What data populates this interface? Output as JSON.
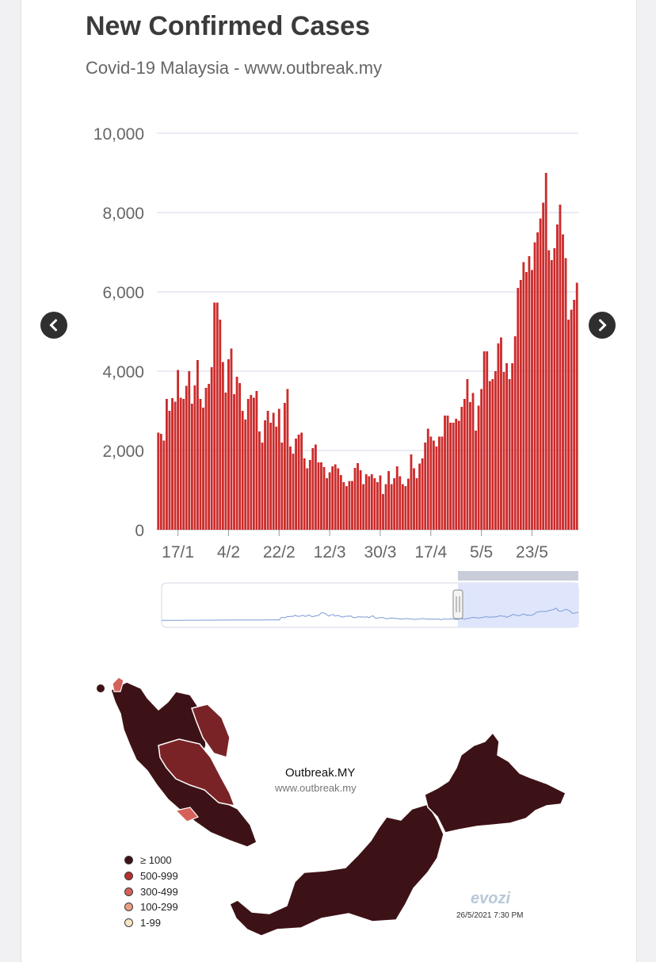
{
  "header": {
    "title": "New Confirmed Cases",
    "subtitle": "Covid-19 Malaysia - www.outbreak.my"
  },
  "nav": {
    "prev_icon": "chevron-left-icon",
    "next_icon": "chevron-right-icon"
  },
  "colors": {
    "bar": "#cc2b2b",
    "grid": "#d6d9e8",
    "navigator_fill": "#dfe6fb",
    "map_dark": "#3d1216",
    "map_mid": "#7a2327",
    "map_light": "#d6605a"
  },
  "chart_data": {
    "type": "bar",
    "title": "New Confirmed Cases",
    "subtitle": "Covid-19 Malaysia - www.outbreak.my",
    "xlabel": "",
    "ylabel": "",
    "ylim": [
      0,
      10000
    ],
    "yticks": [
      "0",
      "2,000",
      "4,000",
      "6,000",
      "8,000",
      "10,000"
    ],
    "ytick_values": [
      0,
      2000,
      4000,
      6000,
      8000,
      10000
    ],
    "xticks": [
      "17/1",
      "4/2",
      "22/2",
      "12/3",
      "30/3",
      "17/4",
      "5/5",
      "23/5"
    ],
    "xtick_index": [
      7,
      25,
      43,
      61,
      79,
      97,
      115,
      133
    ],
    "grid": true,
    "legend": "none",
    "values": [
      2450,
      2420,
      2250,
      3300,
      3000,
      3320,
      3230,
      4030,
      3330,
      3300,
      3630,
      4000,
      3180,
      3640,
      4280,
      3300,
      3080,
      3580,
      3680,
      4100,
      5730,
      5730,
      5300,
      4230,
      3460,
      4300,
      4570,
      3420,
      3860,
      3700,
      3000,
      2780,
      3300,
      3400,
      3330,
      3500,
      2480,
      2200,
      2760,
      3000,
      2700,
      2950,
      2600,
      3050,
      2200,
      3200,
      3550,
      2100,
      1920,
      2300,
      2400,
      2450,
      1800,
      1550,
      1760,
      2060,
      2150,
      1700,
      1700,
      1580,
      1300,
      1450,
      1600,
      1650,
      1550,
      1380,
      1200,
      1100,
      1230,
      1230,
      1560,
      1680,
      1500,
      1150,
      1400,
      1350,
      1400,
      1300,
      1200,
      1370,
      900,
      1150,
      1480,
      1150,
      1300,
      1600,
      1350,
      1150,
      1100,
      1290,
      1900,
      1550,
      1300,
      1670,
      1800,
      2200,
      2550,
      2350,
      2250,
      2100,
      2350,
      2350,
      2880,
      2880,
      2700,
      2700,
      2800,
      2750,
      3100,
      3300,
      3800,
      3220,
      3450,
      2500,
      3130,
      3550,
      4500,
      4500,
      3750,
      3800,
      4000,
      4700,
      4850,
      3980,
      4200,
      3800,
      4200,
      4880,
      6100,
      6300,
      6750,
      6500,
      6900,
      6550,
      7250,
      7500,
      7850,
      8250,
      9000,
      7050,
      6800,
      7100,
      7700,
      8200,
      7450,
      6850,
      5300,
      5550,
      5800,
      6230
    ]
  },
  "map": {
    "title": "Outbreak.MY",
    "url": "www.outbreak.my",
    "legend": [
      {
        "label": "≥ 1000",
        "color": "#3d1216"
      },
      {
        "label": "500-999",
        "color": "#b5302e"
      },
      {
        "label": "300-499",
        "color": "#d6605a"
      },
      {
        "label": "100-299",
        "color": "#e9a085"
      },
      {
        "label": "1-99",
        "color": "#f7e4c2"
      }
    ],
    "brand": "evozi",
    "timestamp": "26/5/2021 7:30 PM",
    "watermark": "evozi"
  }
}
